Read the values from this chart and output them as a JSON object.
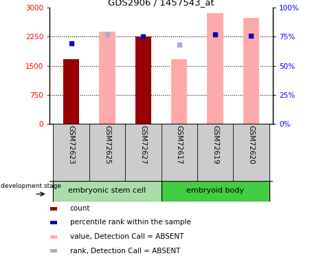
{
  "title": "GDS2906 / 1457543_at",
  "samples": [
    "GSM72623",
    "GSM72625",
    "GSM72627",
    "GSM72617",
    "GSM72619",
    "GSM72620"
  ],
  "groups": [
    "embryonic stem cell",
    "embryoid body"
  ],
  "bar_values": [
    1680,
    2380,
    2260,
    1670,
    2870,
    2740
  ],
  "bar_absent": [
    false,
    true,
    false,
    true,
    true,
    true
  ],
  "rank_values": [
    2080,
    2320,
    2260,
    2050,
    2310,
    2280
  ],
  "rank_absent": [
    false,
    true,
    false,
    true,
    false,
    false
  ],
  "ylim_left": [
    0,
    3000
  ],
  "ylim_right": [
    0,
    100
  ],
  "yticks_left": [
    0,
    750,
    1500,
    2250,
    3000
  ],
  "ytick_labels_left": [
    "0",
    "750",
    "1500",
    "2250",
    "3000"
  ],
  "yticks_right": [
    0,
    25,
    50,
    75,
    100
  ],
  "ytick_labels_right": [
    "0%",
    "25%",
    "50%",
    "75%",
    "100%"
  ],
  "color_dark_red": "#990000",
  "color_light_pink": "#FFAAAA",
  "color_blue_present": "#0000BB",
  "color_blue_absent": "#AAAACC",
  "group1_color": "#AADDAA",
  "group2_color": "#44CC44",
  "cell_bg": "#CCCCCC"
}
